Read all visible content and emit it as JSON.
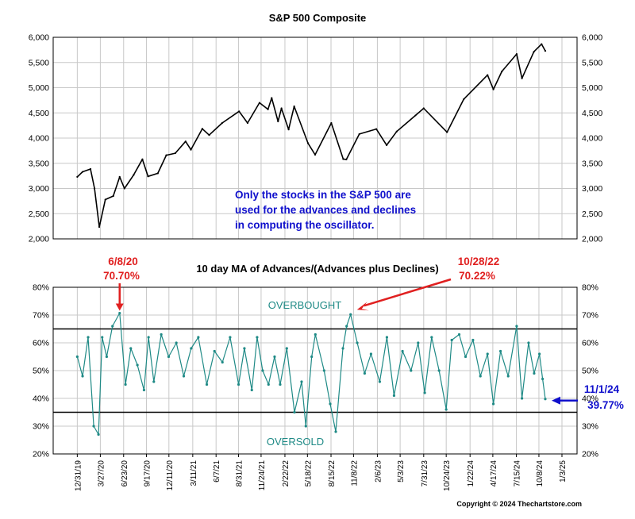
{
  "chart_data": [
    {
      "type": "line",
      "title": "S&P 500 Composite",
      "xlabel": "",
      "ylabel": "",
      "ylim": [
        2000,
        6000
      ],
      "yticks": [
        "2,000",
        "2,500",
        "3,000",
        "3,500",
        "4,000",
        "4,500",
        "5,000",
        "5,500",
        "6,000"
      ],
      "ytick_values": [
        2000,
        2500,
        3000,
        3500,
        4000,
        4500,
        5000,
        5500,
        6000
      ],
      "grid": true,
      "line_color": "#000000",
      "annotation": {
        "lines": [
          "Only the stocks in the S&P 500 are",
          "used for the advances and declines",
          "in computing the oscillator."
        ],
        "color": "#1010cc"
      },
      "series": [
        {
          "x": [
            "2019-12-31",
            "2020-01-20",
            "2020-02-19",
            "2020-03-05",
            "2020-03-23",
            "2020-04-15",
            "2020-05-15",
            "2020-06-08",
            "2020-06-26",
            "2020-07-31",
            "2020-09-02",
            "2020-09-23",
            "2020-10-30",
            "2020-12-01",
            "2021-01-04",
            "2021-02-12",
            "2021-03-04",
            "2021-04-16",
            "2021-05-12",
            "2021-06-30",
            "2021-09-02",
            "2021-10-04",
            "2021-11-18",
            "2021-12-20",
            "2022-01-03",
            "2022-01-27",
            "2022-02-09",
            "2022-03-08",
            "2022-03-29",
            "2022-05-20",
            "2022-06-16",
            "2022-08-16",
            "2022-09-30",
            "2022-10-12",
            "2022-11-30",
            "2023-02-02",
            "2023-03-13",
            "2023-04-20",
            "2023-06-30",
            "2023-07-31",
            "2023-10-27",
            "2023-12-29",
            "2024-03-28",
            "2024-04-19",
            "2024-05-21",
            "2024-07-16",
            "2024-08-05",
            "2024-09-19",
            "2024-10-18",
            "2024-11-01"
          ],
          "values": [
            3230,
            3330,
            3386,
            3000,
            2237,
            2780,
            2850,
            3230,
            3000,
            3270,
            3580,
            3240,
            3300,
            3660,
            3700,
            3934,
            3770,
            4185,
            4060,
            4300,
            4530,
            4300,
            4700,
            4570,
            4796,
            4330,
            4590,
            4170,
            4630,
            3900,
            3670,
            4300,
            3585,
            3577,
            4080,
            4180,
            3860,
            4130,
            4450,
            4590,
            4117,
            4770,
            5250,
            4967,
            5321,
            5667,
            5186,
            5713,
            5864,
            5730
          ]
        }
      ]
    },
    {
      "type": "line",
      "title": "10 day MA of Advances/(Advances plus Declines)",
      "xlabel": "",
      "ylabel": "",
      "ylim": [
        20,
        80
      ],
      "yticks": [
        "20%",
        "30%",
        "40%",
        "50%",
        "60%",
        "70%",
        "80%"
      ],
      "ytick_values": [
        20,
        30,
        40,
        50,
        60,
        70,
        80
      ],
      "grid": true,
      "line_color": "#1f8a86",
      "reference_lines": [
        {
          "label": "OVERBOUGHT",
          "value": 65
        },
        {
          "label": "OVERSOLD",
          "value": 35
        }
      ],
      "x_tick_labels": [
        "12/31/19",
        "3/27/20",
        "6/23/20",
        "9/17/20",
        "12/11/20",
        "3/11/21",
        "6/7/21",
        "8/31/21",
        "11/24/21",
        "2/22/22",
        "5/18/22",
        "8/15/22",
        "11/8/22",
        "2/6/23",
        "5/3/23",
        "7/31/23",
        "10/24/23",
        "1/22/24",
        "4/17/24",
        "7/15/24",
        "10/8/24",
        "1/3/25"
      ],
      "x_tick_dates": [
        "2019-12-31",
        "2020-03-27",
        "2020-06-23",
        "2020-09-17",
        "2020-12-11",
        "2021-03-11",
        "2021-06-07",
        "2021-08-31",
        "2021-11-24",
        "2022-02-22",
        "2022-05-18",
        "2022-08-15",
        "2022-11-08",
        "2023-02-06",
        "2023-05-03",
        "2023-07-31",
        "2023-10-24",
        "2024-01-22",
        "2024-04-17",
        "2024-07-15",
        "2024-10-08",
        "2025-01-03"
      ],
      "annotations": [
        {
          "date_label": "6/8/20",
          "value_label": "70.70%",
          "date": "2020-06-08",
          "value": 70.7,
          "color": "#e02020"
        },
        {
          "date_label": "10/28/22",
          "value_label": "70.22%",
          "date": "2022-10-28",
          "value": 70.22,
          "color": "#e02020"
        },
        {
          "date_label": "11/1/24",
          "value_label": "39.77%",
          "date": "2024-11-01",
          "value": 39.77,
          "color": "#1010cc"
        }
      ],
      "series": [
        {
          "x": [
            "2019-12-31",
            "2020-01-20",
            "2020-02-10",
            "2020-03-02",
            "2020-03-20",
            "2020-04-03",
            "2020-04-20",
            "2020-05-12",
            "2020-06-08",
            "2020-06-30",
            "2020-07-20",
            "2020-08-14",
            "2020-09-08",
            "2020-09-25",
            "2020-10-15",
            "2020-11-12",
            "2020-12-10",
            "2021-01-08",
            "2021-02-05",
            "2021-03-05",
            "2021-04-01",
            "2021-05-03",
            "2021-06-01",
            "2021-07-01",
            "2021-07-30",
            "2021-08-31",
            "2021-09-22",
            "2021-10-20",
            "2021-11-09",
            "2021-11-30",
            "2021-12-22",
            "2022-01-14",
            "2022-02-04",
            "2022-03-01",
            "2022-03-30",
            "2022-04-26",
            "2022-05-12",
            "2022-06-03",
            "2022-06-17",
            "2022-07-20",
            "2022-08-12",
            "2022-09-02",
            "2022-09-29",
            "2022-10-13",
            "2022-10-28",
            "2022-11-22",
            "2022-12-20",
            "2023-01-13",
            "2023-02-15",
            "2023-03-14",
            "2023-04-10",
            "2023-05-12",
            "2023-06-13",
            "2023-07-10",
            "2023-08-04",
            "2023-08-30",
            "2023-09-27",
            "2023-10-24",
            "2023-11-14",
            "2023-12-12",
            "2024-01-05",
            "2024-02-02",
            "2024-03-01",
            "2024-03-28",
            "2024-04-19",
            "2024-05-16",
            "2024-06-14",
            "2024-07-16",
            "2024-08-05",
            "2024-08-30",
            "2024-09-20",
            "2024-10-10",
            "2024-10-22",
            "2024-11-01"
          ],
          "values": [
            55,
            48,
            62,
            30,
            27,
            62,
            55,
            66,
            70.7,
            45,
            58,
            52,
            43,
            62,
            46,
            63,
            55,
            60,
            48,
            58,
            62,
            45,
            57,
            53,
            62,
            45,
            58,
            43,
            62,
            50,
            45,
            55,
            45,
            58,
            35,
            46,
            30,
            55,
            63,
            50,
            38,
            28,
            58,
            66,
            70.22,
            60,
            49,
            56,
            46,
            62,
            41,
            57,
            50,
            60,
            42,
            62,
            50,
            36,
            61,
            63,
            55,
            61,
            48,
            56,
            38,
            57,
            48,
            66,
            40,
            60,
            49,
            56,
            47,
            39.77
          ]
        }
      ]
    }
  ],
  "copyright": "Copyright © 2024 Thechartstore.com"
}
